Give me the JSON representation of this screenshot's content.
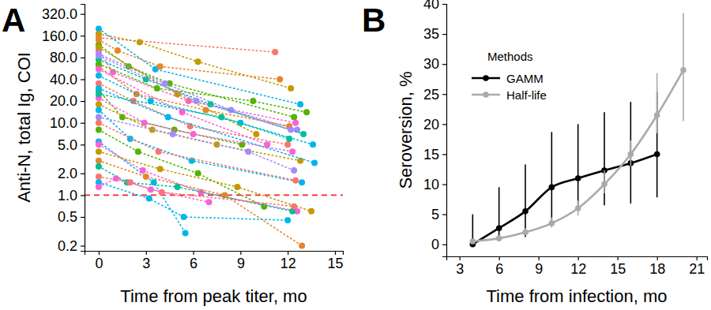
{
  "chart_data": [
    {
      "type": "line",
      "title": "A",
      "x_label": "Time from peak titer, mo",
      "y_label": "Anti-N, total Ig, COI",
      "log": "y",
      "xlim": [
        -0.9,
        15.5
      ],
      "ylim": [
        0.17,
        440
      ],
      "xticks": [
        0,
        3,
        6,
        9,
        12,
        15
      ],
      "yticks": [
        0.2,
        0.5,
        {
          "value": 1,
          "label": "1.0"
        },
        {
          "value": 2,
          "label": "2.0"
        },
        {
          "value": 5,
          "label": "5.0"
        },
        {
          "value": 10,
          "label": "10.0"
        },
        {
          "value": 20,
          "label": "20.0"
        },
        {
          "value": 40,
          "label": "40.0"
        },
        {
          "value": 80,
          "label": "80.0"
        },
        {
          "value": 160,
          "label": "160.0"
        },
        {
          "value": 320,
          "label": "320.0"
        }
      ],
      "marker": "circle",
      "line_style": "dotted",
      "cutoff": 1,
      "series": [
        {
          "color": "#00b6eb",
          "x": [
            0,
            3.6,
            12.8
          ],
          "values": [
            200,
            55,
            18
          ]
        },
        {
          "color": "#f8766d",
          "x": [
            0,
            11.2
          ],
          "values": [
            150,
            95
          ]
        },
        {
          "color": "#c49a00",
          "x": [
            0,
            2.6,
            6.3,
            12.2
          ],
          "values": [
            170,
            130,
            70,
            30
          ]
        },
        {
          "color": "#53b400",
          "x": [
            0,
            1.9,
            4.5,
            12.4
          ],
          "values": [
            120,
            60,
            35,
            12
          ]
        },
        {
          "color": "#fb61d7",
          "x": [
            0,
            0.9,
            5.7,
            12.5
          ],
          "values": [
            100,
            50,
            20,
            10
          ]
        },
        {
          "color": "#a58aff",
          "x": [
            0,
            4.2,
            8.4,
            12.6
          ],
          "values": [
            90,
            35,
            15,
            8
          ]
        },
        {
          "color": "#00c094",
          "x": [
            0,
            3.0,
            7.1,
            13.0
          ],
          "values": [
            75,
            40,
            18,
            7
          ]
        },
        {
          "color": "#e6862b",
          "x": [
            0,
            2.4,
            6.8,
            12.1
          ],
          "values": [
            60,
            25,
            15,
            9
          ]
        },
        {
          "color": "#00b6eb",
          "x": [
            0,
            3.3,
            9.0,
            13.6
          ],
          "values": [
            45,
            20,
            10,
            5
          ]
        },
        {
          "color": "#f8766d",
          "x": [
            0,
            2.2,
            5.8,
            12.0
          ],
          "values": [
            35,
            20,
            9,
            5
          ]
        },
        {
          "color": "#53b400",
          "x": [
            0,
            1.5,
            4.8,
            9.1
          ],
          "values": [
            28,
            12,
            8,
            5
          ]
        },
        {
          "color": "#fb61d7",
          "x": [
            0,
            2.9,
            6.0,
            12.3
          ],
          "values": [
            22,
            10,
            7,
            4
          ]
        },
        {
          "color": "#c49a00",
          "x": [
            0,
            3.4,
            7.5,
            12.8
          ],
          "values": [
            18,
            8,
            5,
            3
          ]
        },
        {
          "color": "#00b6eb",
          "x": [
            0,
            2.0,
            5.9,
            12.9
          ],
          "values": [
            15,
            6,
            3,
            1.5
          ]
        },
        {
          "color": "#a58aff",
          "x": [
            0,
            4.7,
            9.5,
            12.4
          ],
          "values": [
            12,
            7,
            4,
            2.2
          ]
        },
        {
          "color": "#f8766d",
          "x": [
            0,
            3.8,
            12.5
          ],
          "values": [
            10,
            4,
            1.6
          ]
        },
        {
          "color": "#53b400",
          "x": [
            0,
            2.5,
            6.3,
            10.5
          ],
          "values": [
            8,
            4,
            2,
            0.7
          ]
        },
        {
          "color": "#00b6eb",
          "x": [
            0,
            3.5,
            5.5
          ],
          "values": [
            5.5,
            1.5,
            0.3
          ]
        },
        {
          "color": "#fb61d7",
          "x": [
            0,
            2.8,
            6.5,
            12.6
          ],
          "values": [
            5,
            2.2,
            1.1,
            0.6
          ]
        },
        {
          "color": "#c49a00",
          "x": [
            0,
            3.9,
            8.8,
            13.5
          ],
          "values": [
            4,
            2.3,
            1.3,
            0.6
          ]
        },
        {
          "color": "#e6862b",
          "x": [
            0,
            3.0,
            8.0,
            12.9
          ],
          "values": [
            3,
            1.8,
            1.0,
            0.2
          ]
        },
        {
          "color": "#00c094",
          "x": [
            0,
            1.8,
            5.0,
            12.3
          ],
          "values": [
            2.5,
            1.5,
            1.3,
            0.6
          ]
        },
        {
          "color": "#f8766d",
          "x": [
            0,
            2.0,
            4.0,
            12.4
          ],
          "values": [
            1.8,
            1.5,
            1.1,
            0.7
          ]
        },
        {
          "color": "#00b6eb",
          "x": [
            0,
            3.2,
            5.4,
            12.0
          ],
          "values": [
            1.5,
            0.9,
            0.5,
            0.45
          ]
        },
        {
          "color": "#fb61d7",
          "x": [
            0,
            1.1,
            3.3,
            7.0
          ],
          "values": [
            1.3,
            1.7,
            1.2,
            0.8
          ]
        },
        {
          "color": "#53b400",
          "x": [
            0,
            3.7,
            9.8,
            13.2
          ],
          "values": [
            65,
            30,
            20,
            14
          ]
        },
        {
          "color": "#c49a00",
          "x": [
            0,
            5.0,
            10.0
          ],
          "values": [
            110,
            25,
            7
          ]
        },
        {
          "color": "#00b6eb",
          "x": [
            0,
            4.4,
            13.7
          ],
          "values": [
            30,
            12,
            2.8
          ]
        },
        {
          "color": "#a58aff",
          "x": [
            0,
            6.2,
            12.2
          ],
          "values": [
            85,
            20,
            8
          ]
        },
        {
          "color": "#e6862b",
          "x": [
            0,
            1.2,
            3.9,
            11.5
          ],
          "values": [
            140,
            100,
            60,
            40
          ]
        },
        {
          "color": "#00c094",
          "x": [
            0,
            7.8,
            12.1
          ],
          "values": [
            25,
            12,
            6
          ]
        },
        {
          "color": "#fb61d7",
          "x": [
            0,
            5.3,
            10.7
          ],
          "values": [
            55,
            14,
            5
          ]
        }
      ]
    },
    {
      "type": "line",
      "title": "B",
      "x_label": "Time from infection, mo",
      "y_label": "Seroversion, %",
      "legend_title": "Methods",
      "legend": "upper left",
      "xlim": [
        2,
        21.8
      ],
      "ylim": [
        -2,
        40
      ],
      "xticks": [
        3,
        6,
        9,
        12,
        15,
        18,
        21
      ],
      "yticks": [
        0,
        5,
        10,
        15,
        20,
        25,
        30,
        35,
        40
      ],
      "marker": "circle",
      "series": [
        {
          "name": "GAMM",
          "color": "#000000",
          "x": [
            4,
            6,
            8,
            10,
            12,
            14,
            16,
            18
          ],
          "values": [
            0,
            2.7,
            5.5,
            9.5,
            11,
            12.3,
            13.5,
            15
          ],
          "lower": [
            0,
            0.5,
            1.2,
            4,
            6,
            6.5,
            6.8,
            7.8
          ],
          "upper": [
            5,
            9.5,
            13.3,
            18.7,
            20,
            22,
            23.7,
            25.3
          ]
        },
        {
          "name": "Half-life",
          "color": "#aaaaaa",
          "x": [
            4,
            6,
            8,
            10,
            12,
            14,
            16,
            18,
            20
          ],
          "values": [
            0.5,
            1,
            2,
            3.5,
            6,
            10,
            15,
            21.5,
            29
          ],
          "lower": [
            0.3,
            0.7,
            1.5,
            2.8,
            4.8,
            8.5,
            13,
            18.5,
            20.5
          ],
          "upper": [
            0.8,
            1.4,
            2.7,
            4.5,
            7.3,
            12.3,
            17.3,
            28.5,
            38.5
          ]
        }
      ]
    }
  ]
}
